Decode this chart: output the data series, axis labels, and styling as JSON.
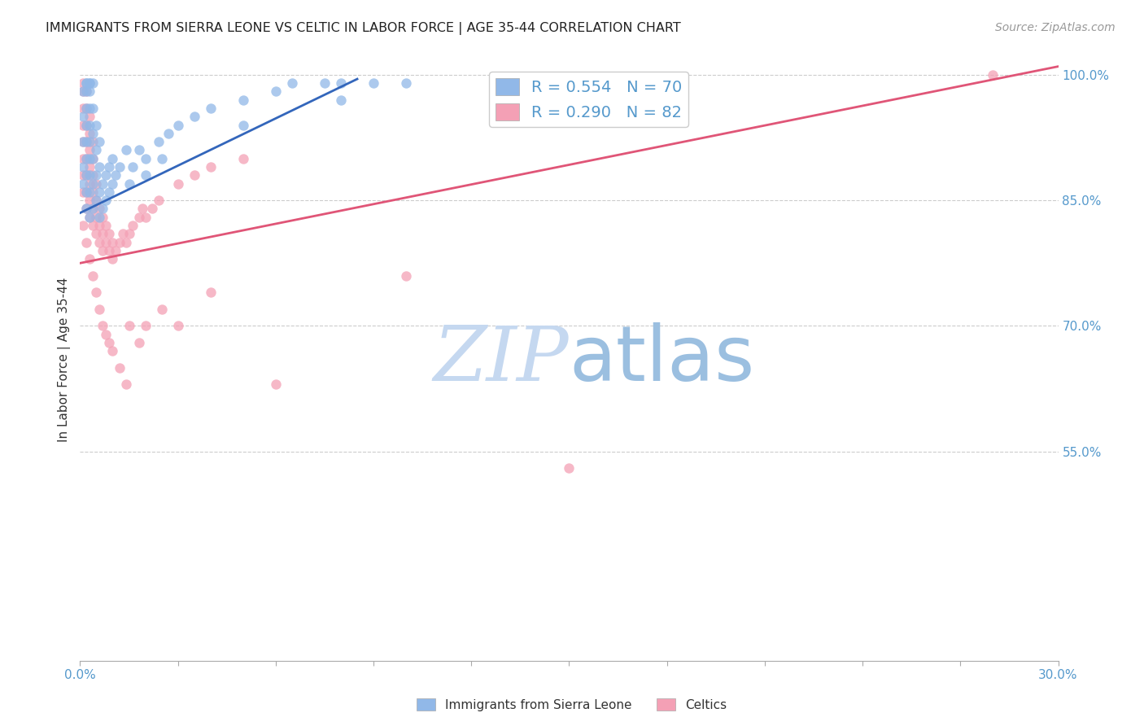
{
  "title": "IMMIGRANTS FROM SIERRA LEONE VS CELTIC IN LABOR FORCE | AGE 35-44 CORRELATION CHART",
  "source": "Source: ZipAtlas.com",
  "ylabel": "In Labor Force | Age 35-44",
  "xlim": [
    0.0,
    0.3
  ],
  "ylim": [
    0.3,
    1.02
  ],
  "blue_R": 0.554,
  "blue_N": 70,
  "pink_R": 0.29,
  "pink_N": 82,
  "blue_color": "#91b8e8",
  "pink_color": "#f4a0b5",
  "blue_line_color": "#3366bb",
  "pink_line_color": "#e05577",
  "grid_color": "#cccccc",
  "title_color": "#222222",
  "axis_label_color": "#333333",
  "tick_label_color": "#5599cc",
  "watermark_zip_color": "#c5d8f0",
  "watermark_atlas_color": "#9bbfe0",
  "legend_text_color": "#5599cc",
  "blue_line_x0": 0.0,
  "blue_line_y0": 0.835,
  "blue_line_x1": 0.085,
  "blue_line_y1": 0.995,
  "pink_line_x0": 0.0,
  "pink_line_y0": 0.775,
  "pink_line_x1": 0.3,
  "pink_line_y1": 1.01,
  "blue_x": [
    0.001,
    0.001,
    0.001,
    0.001,
    0.001,
    0.002,
    0.002,
    0.002,
    0.002,
    0.002,
    0.002,
    0.002,
    0.002,
    0.002,
    0.002,
    0.003,
    0.003,
    0.003,
    0.003,
    0.003,
    0.003,
    0.003,
    0.003,
    0.003,
    0.003,
    0.004,
    0.004,
    0.004,
    0.004,
    0.004,
    0.004,
    0.005,
    0.005,
    0.005,
    0.005,
    0.006,
    0.006,
    0.006,
    0.006,
    0.007,
    0.007,
    0.008,
    0.008,
    0.009,
    0.009,
    0.01,
    0.01,
    0.011,
    0.012,
    0.014,
    0.016,
    0.018,
    0.02,
    0.024,
    0.027,
    0.03,
    0.035,
    0.04,
    0.05,
    0.06,
    0.065,
    0.075,
    0.08,
    0.09,
    0.1,
    0.015,
    0.02,
    0.025,
    0.05,
    0.08
  ],
  "blue_y": [
    0.87,
    0.89,
    0.92,
    0.95,
    0.98,
    0.84,
    0.86,
    0.88,
    0.9,
    0.92,
    0.94,
    0.96,
    0.98,
    0.99,
    0.99,
    0.83,
    0.86,
    0.88,
    0.9,
    0.92,
    0.94,
    0.96,
    0.98,
    0.99,
    0.99,
    0.84,
    0.87,
    0.9,
    0.93,
    0.96,
    0.99,
    0.85,
    0.88,
    0.91,
    0.94,
    0.83,
    0.86,
    0.89,
    0.92,
    0.84,
    0.87,
    0.85,
    0.88,
    0.86,
    0.89,
    0.87,
    0.9,
    0.88,
    0.89,
    0.91,
    0.89,
    0.91,
    0.9,
    0.92,
    0.93,
    0.94,
    0.95,
    0.96,
    0.97,
    0.98,
    0.99,
    0.99,
    0.99,
    0.99,
    0.99,
    0.87,
    0.88,
    0.9,
    0.94,
    0.97
  ],
  "pink_x": [
    0.001,
    0.001,
    0.001,
    0.001,
    0.001,
    0.001,
    0.001,
    0.001,
    0.002,
    0.002,
    0.002,
    0.002,
    0.002,
    0.002,
    0.002,
    0.002,
    0.003,
    0.003,
    0.003,
    0.003,
    0.003,
    0.003,
    0.003,
    0.004,
    0.004,
    0.004,
    0.004,
    0.004,
    0.004,
    0.005,
    0.005,
    0.005,
    0.005,
    0.006,
    0.006,
    0.006,
    0.007,
    0.007,
    0.007,
    0.008,
    0.008,
    0.009,
    0.009,
    0.01,
    0.01,
    0.011,
    0.012,
    0.013,
    0.014,
    0.015,
    0.016,
    0.018,
    0.019,
    0.02,
    0.022,
    0.024,
    0.03,
    0.035,
    0.04,
    0.05,
    0.001,
    0.002,
    0.003,
    0.004,
    0.005,
    0.006,
    0.007,
    0.008,
    0.009,
    0.01,
    0.012,
    0.014,
    0.015,
    0.018,
    0.02,
    0.025,
    0.03,
    0.04,
    0.06,
    0.1,
    0.15,
    0.28
  ],
  "pink_y": [
    0.86,
    0.88,
    0.9,
    0.92,
    0.94,
    0.96,
    0.98,
    0.99,
    0.84,
    0.86,
    0.88,
    0.9,
    0.92,
    0.94,
    0.96,
    0.98,
    0.83,
    0.85,
    0.87,
    0.89,
    0.91,
    0.93,
    0.95,
    0.82,
    0.84,
    0.86,
    0.88,
    0.9,
    0.92,
    0.81,
    0.83,
    0.85,
    0.87,
    0.8,
    0.82,
    0.84,
    0.79,
    0.81,
    0.83,
    0.8,
    0.82,
    0.79,
    0.81,
    0.78,
    0.8,
    0.79,
    0.8,
    0.81,
    0.8,
    0.81,
    0.82,
    0.83,
    0.84,
    0.83,
    0.84,
    0.85,
    0.87,
    0.88,
    0.89,
    0.9,
    0.82,
    0.8,
    0.78,
    0.76,
    0.74,
    0.72,
    0.7,
    0.69,
    0.68,
    0.67,
    0.65,
    0.63,
    0.7,
    0.68,
    0.7,
    0.72,
    0.7,
    0.74,
    0.63,
    0.76,
    0.53,
    1.0
  ]
}
